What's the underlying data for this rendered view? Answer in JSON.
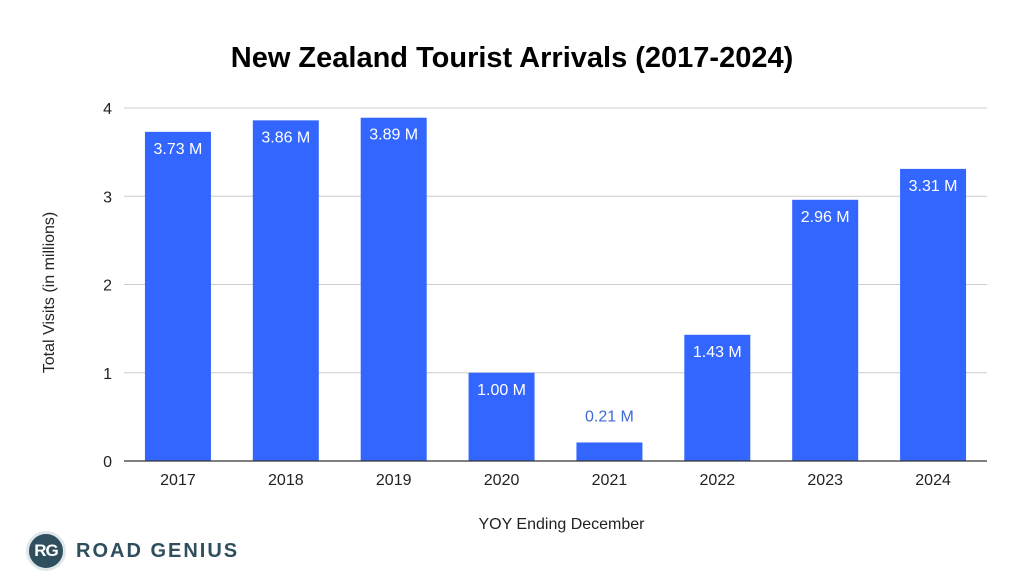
{
  "chart_data": {
    "type": "bar",
    "title": "New Zealand Tourist Arrivals (2017-2024)",
    "xlabel": "YOY Ending December",
    "ylabel": "Total Visits (in millions)",
    "categories": [
      "2017",
      "2018",
      "2019",
      "2020",
      "2021",
      "2022",
      "2023",
      "2024"
    ],
    "values": [
      3.73,
      3.86,
      3.89,
      1.0,
      0.21,
      1.43,
      2.96,
      3.31
    ],
    "value_labels": [
      "3.73 M",
      "3.86 M",
      "3.89 M",
      "1.00 M",
      "0.21 M",
      "1.43 M",
      "2.96 M",
      "3.31 M"
    ],
    "ylim": [
      0,
      4
    ],
    "yticks": [
      "0",
      "1",
      "2",
      "3",
      "4"
    ],
    "grid": true,
    "bar_color": "#3366ff",
    "inside_label_color": "#ffffff",
    "outside_label_color": "#3d6ad6"
  },
  "logo": {
    "badge": "RG",
    "text": "ROAD GENIUS"
  }
}
